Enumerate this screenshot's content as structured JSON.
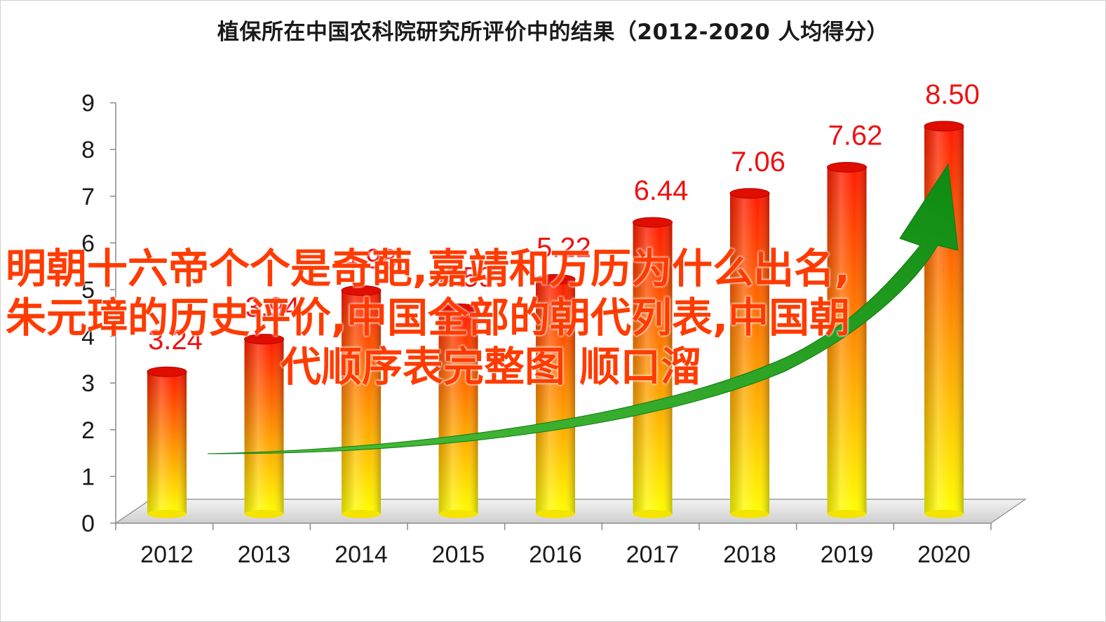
{
  "chart_data": {
    "type": "bar",
    "title": "植保所在中国农科院研究所评价中的结果（2012-2020  人均得分）",
    "categories": [
      "2012",
      "2013",
      "2014",
      "2015",
      "2016",
      "2017",
      "2018",
      "2019",
      "2020"
    ],
    "values": [
      3.24,
      3.94,
      4.98,
      4.59,
      5.22,
      6.44,
      7.06,
      7.62,
      8.5
    ],
    "data_labels": [
      "3.24",
      "3.94",
      "4.98",
      "4.59",
      "5.22",
      "6.44",
      "7.06",
      "7.62",
      "8.50"
    ],
    "y_ticks": [
      "0",
      "1",
      "2",
      "3",
      "4",
      "5",
      "6",
      "7",
      "8",
      "9"
    ],
    "ylim": [
      0,
      9
    ],
    "xlabel": "",
    "ylabel": "",
    "grid": false,
    "legend": "none",
    "colors": {
      "bar_top": "#ff1a00",
      "bar_bottom": "#ffff00",
      "label": "#ee1111",
      "trend_arrow": "#1f9a1f"
    }
  },
  "overlay_text": {
    "line1": "明朝十六帝个个是奇葩,嘉靖和万历为什么出名,",
    "line2": "朱元璋的历史评价,中国全部的朝代列表,中国朝",
    "line3": "代顺序表完整图 顺口溜",
    "color": "#ff3b00"
  }
}
